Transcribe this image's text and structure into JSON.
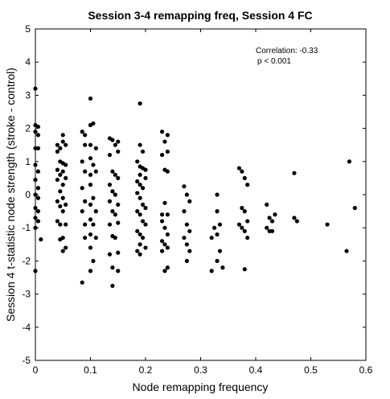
{
  "chart_data": {
    "type": "scatter",
    "title": "Session 3-4 remapping freq, Session 4 FC",
    "xlabel": "Node remapping frequency",
    "ylabel": "Session 4 t-statistic node strength (stroke - control)",
    "xlim": [
      0,
      0.6
    ],
    "ylim": [
      -5,
      5
    ],
    "xticks": [
      "0",
      "0.1",
      "0.2",
      "0.3",
      "0.4",
      "0.5",
      "0.6"
    ],
    "yticks": [
      "5",
      "4",
      "3",
      "2",
      "1",
      "0",
      "-1",
      "-2",
      "-3",
      "-4",
      "-5"
    ],
    "grid": false,
    "annotation": {
      "line1": "Correlation: -0.33",
      "line2": "p < 0.001"
    },
    "marker_color": "#000000",
    "points": [
      [
        0.0,
        3.2
      ],
      [
        0.0,
        2.1
      ],
      [
        0.005,
        2.05
      ],
      [
        0.0,
        1.9
      ],
      [
        0.005,
        1.8
      ],
      [
        0.0,
        1.4
      ],
      [
        0.005,
        1.4
      ],
      [
        0.0,
        0.9
      ],
      [
        0.005,
        0.7
      ],
      [
        0.0,
        0.45
      ],
      [
        0.005,
        0.2
      ],
      [
        0.0,
        0.0
      ],
      [
        0.005,
        -0.1
      ],
      [
        0.0,
        -0.4
      ],
      [
        0.005,
        -0.5
      ],
      [
        0.0,
        -0.7
      ],
      [
        0.005,
        -0.8
      ],
      [
        0.0,
        -1.0
      ],
      [
        0.01,
        -1.35
      ],
      [
        0.0,
        -2.3
      ],
      [
        0.04,
        1.5
      ],
      [
        0.045,
        1.4
      ],
      [
        0.04,
        1.3
      ],
      [
        0.05,
        1.8
      ],
      [
        0.05,
        1.6
      ],
      [
        0.055,
        1.5
      ],
      [
        0.045,
        1.0
      ],
      [
        0.05,
        0.95
      ],
      [
        0.055,
        0.9
      ],
      [
        0.04,
        0.75
      ],
      [
        0.05,
        0.7
      ],
      [
        0.045,
        0.6
      ],
      [
        0.055,
        0.5
      ],
      [
        0.04,
        0.45
      ],
      [
        0.05,
        0.3
      ],
      [
        0.045,
        0.1
      ],
      [
        0.05,
        -0.1
      ],
      [
        0.04,
        -0.2
      ],
      [
        0.055,
        -0.3
      ],
      [
        0.045,
        -0.35
      ],
      [
        0.05,
        -0.5
      ],
      [
        0.04,
        -0.8
      ],
      [
        0.055,
        -0.9
      ],
      [
        0.045,
        -0.9
      ],
      [
        0.05,
        -1.3
      ],
      [
        0.045,
        -1.35
      ],
      [
        0.055,
        -1.6
      ],
      [
        0.05,
        -1.7
      ],
      [
        0.085,
        1.9
      ],
      [
        0.09,
        1.8
      ],
      [
        0.1,
        2.9
      ],
      [
        0.1,
        2.1
      ],
      [
        0.105,
        2.15
      ],
      [
        0.09,
        1.5
      ],
      [
        0.1,
        1.5
      ],
      [
        0.11,
        1.4
      ],
      [
        0.085,
        1.0
      ],
      [
        0.1,
        1.1
      ],
      [
        0.105,
        0.9
      ],
      [
        0.09,
        0.7
      ],
      [
        0.1,
        0.6
      ],
      [
        0.11,
        0.7
      ],
      [
        0.085,
        0.2
      ],
      [
        0.1,
        0.3
      ],
      [
        0.09,
        -0.2
      ],
      [
        0.105,
        -0.1
      ],
      [
        0.1,
        -0.3
      ],
      [
        0.11,
        -0.5
      ],
      [
        0.085,
        -0.5
      ],
      [
        0.1,
        -0.75
      ],
      [
        0.09,
        -0.9
      ],
      [
        0.105,
        -0.9
      ],
      [
        0.1,
        -1.2
      ],
      [
        0.11,
        -1.3
      ],
      [
        0.09,
        -1.3
      ],
      [
        0.1,
        -1.6
      ],
      [
        0.105,
        -2.0
      ],
      [
        0.1,
        -2.3
      ],
      [
        0.085,
        -2.65
      ],
      [
        0.135,
        1.7
      ],
      [
        0.14,
        1.65
      ],
      [
        0.15,
        1.6
      ],
      [
        0.145,
        1.5
      ],
      [
        0.135,
        1.2
      ],
      [
        0.15,
        1.3
      ],
      [
        0.14,
        0.7
      ],
      [
        0.145,
        0.6
      ],
      [
        0.135,
        0.3
      ],
      [
        0.15,
        0.5
      ],
      [
        0.14,
        0.1
      ],
      [
        0.145,
        0.0
      ],
      [
        0.135,
        -0.2
      ],
      [
        0.15,
        -0.3
      ],
      [
        0.14,
        -0.5
      ],
      [
        0.145,
        -0.6
      ],
      [
        0.135,
        -0.9
      ],
      [
        0.15,
        -0.85
      ],
      [
        0.14,
        -1.25
      ],
      [
        0.145,
        -1.3
      ],
      [
        0.135,
        -1.8
      ],
      [
        0.15,
        -1.75
      ],
      [
        0.14,
        -2.2
      ],
      [
        0.15,
        -2.3
      ],
      [
        0.14,
        -2.75
      ],
      [
        0.19,
        2.75
      ],
      [
        0.19,
        1.5
      ],
      [
        0.195,
        1.3
      ],
      [
        0.185,
        1.0
      ],
      [
        0.19,
        0.85
      ],
      [
        0.195,
        0.8
      ],
      [
        0.19,
        0.6
      ],
      [
        0.2,
        0.75
      ],
      [
        0.185,
        0.4
      ],
      [
        0.19,
        0.3
      ],
      [
        0.195,
        0.2
      ],
      [
        0.2,
        0.5
      ],
      [
        0.185,
        0.05
      ],
      [
        0.19,
        -0.1
      ],
      [
        0.195,
        -0.3
      ],
      [
        0.2,
        -0.4
      ],
      [
        0.185,
        -0.5
      ],
      [
        0.19,
        -0.6
      ],
      [
        0.195,
        -0.8
      ],
      [
        0.2,
        -0.9
      ],
      [
        0.185,
        -1.1
      ],
      [
        0.19,
        -1.2
      ],
      [
        0.195,
        -1.3
      ],
      [
        0.19,
        -1.5
      ],
      [
        0.185,
        -1.7
      ],
      [
        0.19,
        -1.8
      ],
      [
        0.2,
        -1.6
      ],
      [
        0.23,
        1.9
      ],
      [
        0.24,
        1.8
      ],
      [
        0.235,
        1.6
      ],
      [
        0.24,
        1.3
      ],
      [
        0.23,
        1.2
      ],
      [
        0.235,
        0.75
      ],
      [
        0.24,
        0.7
      ],
      [
        0.23,
        -0.6
      ],
      [
        0.235,
        -0.25
      ],
      [
        0.24,
        -0.6
      ],
      [
        0.23,
        -0.8
      ],
      [
        0.235,
        -1.0
      ],
      [
        0.24,
        -1.2
      ],
      [
        0.23,
        -1.4
      ],
      [
        0.235,
        -1.5
      ],
      [
        0.24,
        -1.6
      ],
      [
        0.23,
        -1.7
      ],
      [
        0.235,
        -2.3
      ],
      [
        0.24,
        -2.2
      ],
      [
        0.27,
        0.25
      ],
      [
        0.275,
        0.0
      ],
      [
        0.28,
        -0.2
      ],
      [
        0.27,
        -0.5
      ],
      [
        0.275,
        -0.9
      ],
      [
        0.28,
        -1.1
      ],
      [
        0.27,
        -1.3
      ],
      [
        0.275,
        -1.5
      ],
      [
        0.28,
        -1.7
      ],
      [
        0.275,
        -2.0
      ],
      [
        0.32,
        -2.3
      ],
      [
        0.33,
        0.0
      ],
      [
        0.325,
        -1.0
      ],
      [
        0.33,
        -1.2
      ],
      [
        0.32,
        -1.3
      ],
      [
        0.335,
        -0.9
      ],
      [
        0.33,
        -0.5
      ],
      [
        0.335,
        -1.7
      ],
      [
        0.34,
        -2.2
      ],
      [
        0.33,
        -2.0
      ],
      [
        0.37,
        0.8
      ],
      [
        0.375,
        0.7
      ],
      [
        0.38,
        0.5
      ],
      [
        0.385,
        0.3
      ],
      [
        0.37,
        -0.9
      ],
      [
        0.375,
        -1.0
      ],
      [
        0.38,
        -1.1
      ],
      [
        0.385,
        -0.8
      ],
      [
        0.38,
        -0.5
      ],
      [
        0.375,
        -0.4
      ],
      [
        0.385,
        -1.3
      ],
      [
        0.38,
        -2.25
      ],
      [
        0.42,
        -0.3
      ],
      [
        0.425,
        -0.7
      ],
      [
        0.43,
        -0.8
      ],
      [
        0.42,
        -1.0
      ],
      [
        0.435,
        -0.6
      ],
      [
        0.425,
        -1.1
      ],
      [
        0.43,
        -1.1
      ],
      [
        0.47,
        0.65
      ],
      [
        0.47,
        -0.7
      ],
      [
        0.475,
        -0.8
      ],
      [
        0.53,
        -0.9
      ],
      [
        0.565,
        -1.7
      ],
      [
        0.57,
        1.0
      ],
      [
        0.58,
        -0.4
      ]
    ]
  }
}
